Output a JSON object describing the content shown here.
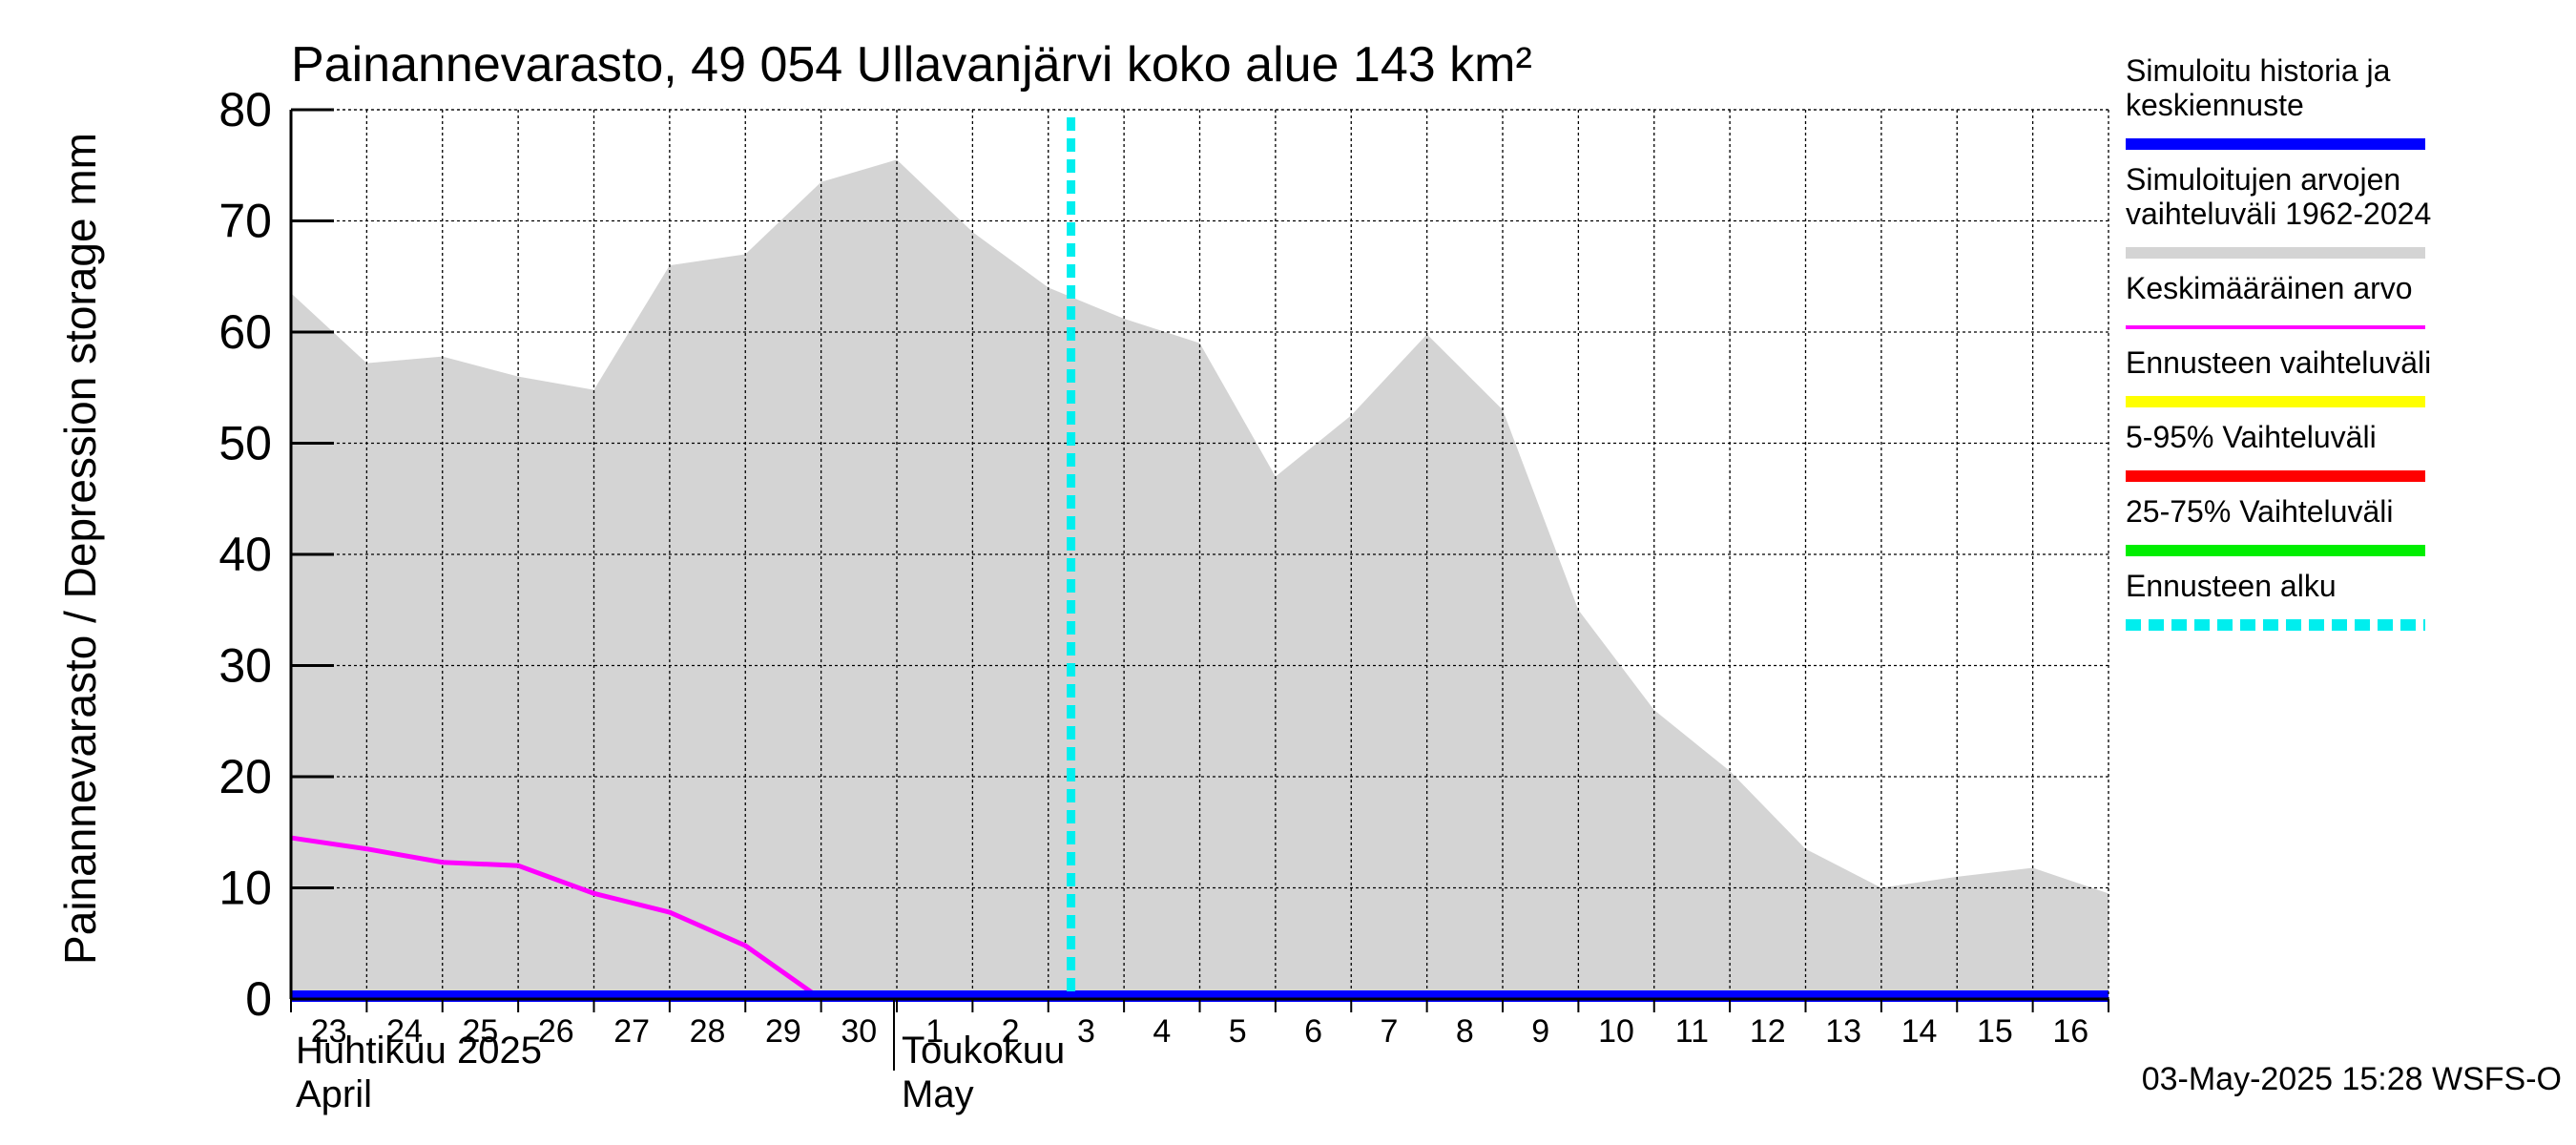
{
  "chart_data": {
    "type": "area",
    "title": "Painannevarasto, 49 054 Ullavanjärvi koko alue 143 km²",
    "ylabel": "Painannevarasto / Depression storage    mm",
    "ylim": [
      0,
      80
    ],
    "yticks": [
      0,
      10,
      20,
      30,
      40,
      50,
      60,
      70,
      80
    ],
    "grid": true,
    "x_days": [
      0,
      24
    ],
    "x_tick_labels": [
      "23",
      "24",
      "25",
      "26",
      "27",
      "28",
      "29",
      "30",
      "1",
      "2",
      "3",
      "4",
      "5",
      "6",
      "7",
      "8",
      "9",
      "10",
      "11",
      "12",
      "13",
      "14",
      "15",
      "16"
    ],
    "month_labels": [
      {
        "fi": "Huhtikuu  2025",
        "en": "April"
      },
      {
        "fi": "Toukokuu",
        "en": "May"
      }
    ],
    "month_boundary_day": 8,
    "forecast_start_day": 10.3,
    "series": [
      {
        "name": "Simuloitujen arvojen vaihteluväli 1962-2024",
        "kind": "range",
        "color": "#d4d4d4",
        "x": [
          0,
          1,
          2,
          3,
          4,
          5,
          6,
          7,
          8,
          9,
          10,
          11,
          12,
          13,
          14,
          15,
          16,
          17,
          18,
          19,
          20,
          21,
          22,
          23,
          24
        ],
        "upper": [
          63.5,
          57.2,
          57.8,
          56.0,
          54.8,
          66.0,
          67.0,
          73.5,
          75.5,
          69.0,
          64.0,
          61.2,
          59.0,
          47.0,
          52.5,
          59.8,
          53.0,
          35.0,
          26.0,
          20.5,
          13.5,
          10.0,
          11.0,
          11.8,
          9.5
        ],
        "lower": [
          0,
          0,
          0,
          0,
          0,
          0,
          0,
          0,
          0,
          0,
          0,
          0,
          0,
          0,
          0,
          0,
          0,
          0,
          0,
          0,
          0,
          0,
          0,
          0,
          0
        ]
      },
      {
        "name": "Keskimääräinen arvo",
        "kind": "line",
        "color": "#ff00ff",
        "x": [
          0,
          1,
          2,
          3,
          4,
          5,
          6,
          7,
          8,
          9,
          10,
          11,
          12,
          13,
          14,
          15,
          16,
          17,
          18,
          19,
          20,
          21,
          22,
          23,
          24
        ],
        "values": [
          14.5,
          13.5,
          12.3,
          12.0,
          9.5,
          7.8,
          4.8,
          0,
          0,
          0,
          0,
          0,
          0,
          0,
          0,
          0,
          0,
          0,
          0,
          0,
          0,
          0,
          0,
          0,
          0
        ]
      },
      {
        "name": "Simuloitu historia ja keskiennuste",
        "kind": "line",
        "color": "#0000ff",
        "x": [
          0,
          24
        ],
        "values": [
          0,
          0
        ]
      }
    ],
    "legend": [
      {
        "label": "Simuloitu historia ja keskiennuste",
        "color": "#0000ff",
        "style": "solid"
      },
      {
        "label": "Simuloitujen arvojen vaihteluväli 1962-2024",
        "color": "#d4d4d4",
        "style": "solid"
      },
      {
        "label": "Keskimääräinen arvo",
        "color": "#ff00ff",
        "style": "thin"
      },
      {
        "label": "Ennusteen vaihteluväli",
        "color": "#ffff00",
        "style": "solid"
      },
      {
        "label": "5-95% Vaihteluväli",
        "color": "#ff0000",
        "style": "solid"
      },
      {
        "label": "25-75% Vaihteluväli",
        "color": "#00ee00",
        "style": "solid"
      },
      {
        "label": "Ennusteen alku",
        "color": "#00eeee",
        "style": "dashed"
      }
    ],
    "legend_position": "right",
    "footer": "03-May-2025 15:28 WSFS-O"
  }
}
